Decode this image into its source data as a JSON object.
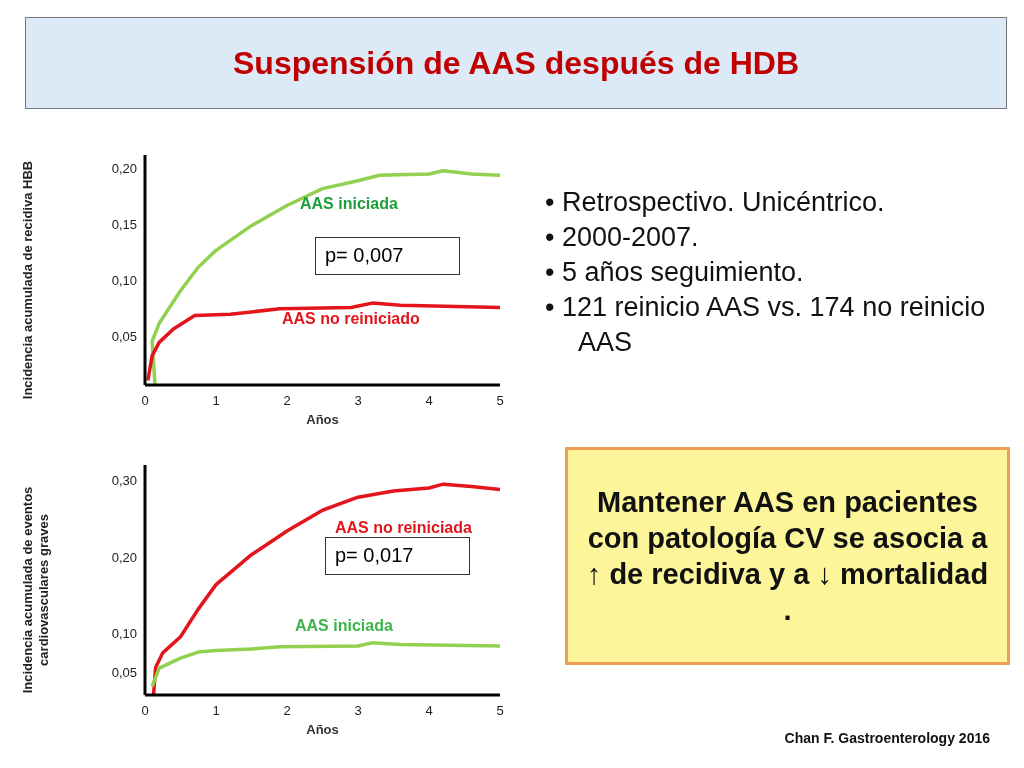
{
  "chart_data": [
    {
      "type": "line",
      "xlabel": "Años",
      "ylabel": "Incidencia acumulada de recidiva  HBB",
      "xlim": [
        0,
        5
      ],
      "xticks": [
        0,
        1,
        2,
        3,
        4,
        5
      ],
      "ylim": [
        0.007,
        0.212
      ],
      "yticks": [
        {
          "value": 0.05,
          "label": "0,05"
        },
        {
          "value": 0.1,
          "label": "0,10"
        },
        {
          "value": 0.15,
          "label": "0,15"
        },
        {
          "value": 0.2,
          "label": "0,20"
        }
      ],
      "series": [
        {
          "name": "AAS iniciada",
          "color": "#92d050",
          "x": [
            0.14,
            0.1,
            0.2,
            0.5,
            0.75,
            1.0,
            1.5,
            2.0,
            2.5,
            3.0,
            3.3,
            4.0,
            4.2,
            4.6,
            5.0
          ],
          "values": [
            0.008,
            0.046,
            0.062,
            0.091,
            0.112,
            0.127,
            0.149,
            0.167,
            0.182,
            0.189,
            0.194,
            0.195,
            0.198,
            0.195,
            0.194
          ]
        },
        {
          "name": "AAS no reiniciado",
          "color": "#e3141b",
          "x": [
            0.04,
            0.1,
            0.2,
            0.4,
            0.7,
            1.2,
            1.9,
            2.9,
            3.2,
            3.6,
            5.0
          ],
          "values": [
            0.011,
            0.033,
            0.045,
            0.057,
            0.069,
            0.07,
            0.075,
            0.076,
            0.08,
            0.078,
            0.076
          ]
        }
      ],
      "annotations": [
        "p= 0,007"
      ]
    },
    {
      "type": "line",
      "xlabel": "Años",
      "ylabel": "Incidencia acumulada de eventos cardiovasculares graves",
      "xlim": [
        0,
        5
      ],
      "xticks": [
        0,
        1,
        2,
        3,
        4,
        5
      ],
      "ylim": [
        0.02,
        0.32
      ],
      "yticks": [
        {
          "value": 0.05,
          "label": "0,05"
        },
        {
          "value": 0.1,
          "label": "0,10"
        },
        {
          "value": 0.2,
          "label": "0,20"
        },
        {
          "value": 0.3,
          "label": "0,30"
        }
      ],
      "series": [
        {
          "name": "AAS no reiniciada",
          "color": "#e3141b",
          "x": [
            0.12,
            0.15,
            0.25,
            0.5,
            0.75,
            1.0,
            1.5,
            2.0,
            2.5,
            3.0,
            3.5,
            4.0,
            4.2,
            4.6,
            5.0
          ],
          "values": [
            0.02,
            0.056,
            0.075,
            0.096,
            0.132,
            0.164,
            0.203,
            0.234,
            0.261,
            0.278,
            0.286,
            0.29,
            0.295,
            0.292,
            0.288
          ]
        },
        {
          "name": "AAS iniciada",
          "color": "#92d050",
          "x": [
            0.1,
            0.2,
            0.5,
            0.75,
            1.0,
            1.5,
            1.9,
            3.0,
            3.2,
            3.6,
            5.0
          ],
          "values": [
            0.031,
            0.055,
            0.068,
            0.076,
            0.078,
            0.08,
            0.083,
            0.084,
            0.088,
            0.086,
            0.084
          ]
        }
      ],
      "annotations": [
        "p= 0,017"
      ]
    },
    {
      "type": "other",
      "title": "Suspensión de AAS después de HDB",
      "annotations": [
        "•  Retrospectivo. Unicéntrico.",
        "•  2000-2007.",
        "•  5 años seguimiento.",
        "•  121 reinicio AAS vs. 174 no reinicio AAS",
        "Mantener AAS en pacientes con patología CV se asocia a ↑ de recidiva y a ↓ mortalidad .",
        "Chan F. Gastroenterology 2016"
      ]
    }
  ]
}
